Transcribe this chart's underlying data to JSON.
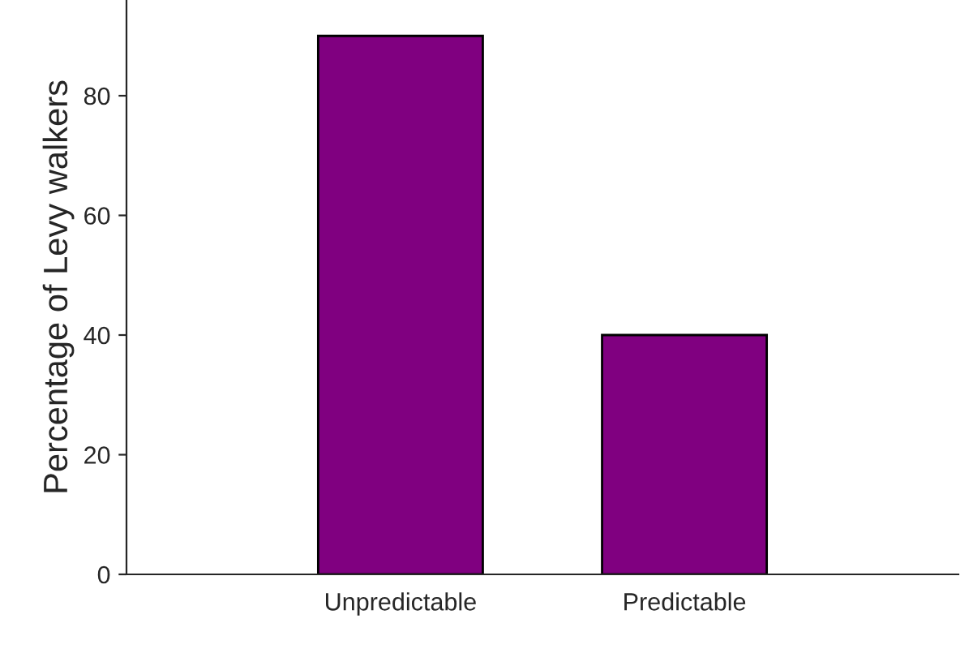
{
  "chart_data": {
    "type": "bar",
    "ylabel": "Percentage of Levy walkers",
    "categories": [
      "Unpredictable",
      "Predictable"
    ],
    "values": [
      90,
      40
    ],
    "color": "#800080",
    "ylim": [
      0,
      96
    ],
    "yticks": [
      0,
      20,
      40,
      60,
      80
    ],
    "grid": false,
    "legend": false
  }
}
